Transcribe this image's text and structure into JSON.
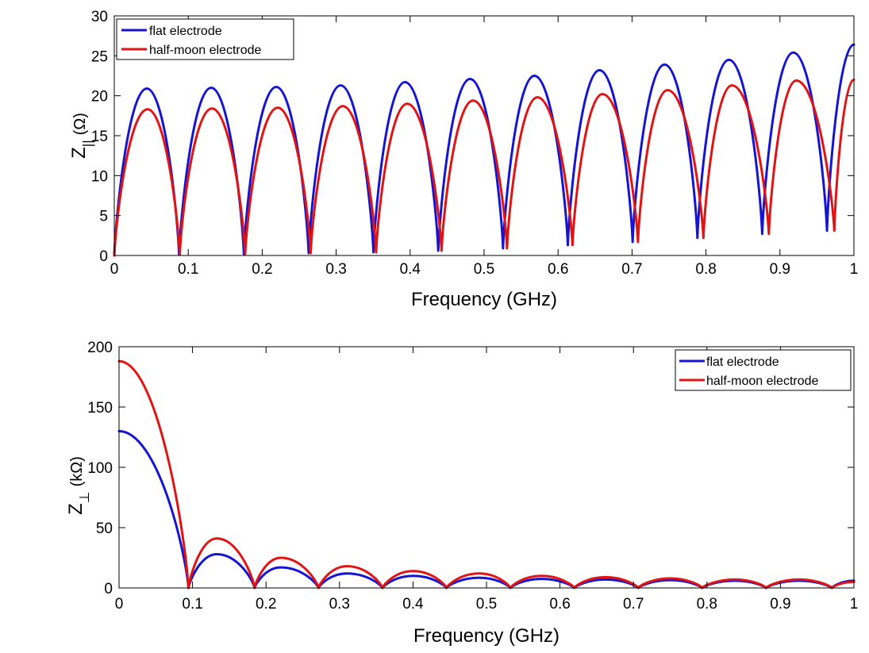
{
  "chart_data": [
    {
      "type": "line",
      "title": "",
      "xlabel": "Frequency (GHz)",
      "ylabel": "Z_|| (Ω)",
      "ylabel_main": "Z",
      "ylabel_sub": "||",
      "ylabel_unit": "(Ω)",
      "xlim": [
        0,
        1
      ],
      "ylim": [
        0,
        30
      ],
      "x_ticks": [
        0,
        0.1,
        0.2,
        0.3,
        0.4,
        0.5,
        0.6,
        0.7,
        0.8,
        0.9,
        1
      ],
      "x_tick_labels": [
        "0",
        "0.1",
        "0.2",
        "0.3",
        "0.4",
        "0.5",
        "0.6",
        "0.7",
        "0.8",
        "0.9",
        "1"
      ],
      "y_ticks": [
        0,
        5,
        10,
        15,
        20,
        25,
        30
      ],
      "y_tick_labels": [
        "0",
        "5",
        "10",
        "15",
        "20",
        "25",
        "30"
      ],
      "legend_position": "top-left",
      "series": [
        {
          "name": "flat electrode",
          "color": "#1414d2",
          "x": [
            0,
            0.044,
            0.0876,
            0.131,
            0.1752,
            0.219,
            0.2628,
            0.306,
            0.3504,
            0.393,
            0.438,
            0.481,
            0.5256,
            0.568,
            0.6132,
            0.656,
            0.7008,
            0.744,
            0.7884,
            0.831,
            0.876,
            0.918,
            0.9636,
            1.0
          ],
          "y": [
            0,
            20.9,
            0.1,
            21.0,
            0.2,
            21.1,
            0.3,
            21.3,
            0.4,
            21.7,
            0.6,
            22.1,
            0.9,
            22.5,
            1.3,
            23.2,
            1.7,
            23.9,
            2.2,
            24.5,
            2.7,
            25.4,
            3.1,
            26.4
          ]
        },
        {
          "name": "half-moon electrode",
          "color": "#e01414",
          "x": [
            0,
            0.045,
            0.0885,
            0.132,
            0.177,
            0.221,
            0.2655,
            0.309,
            0.354,
            0.396,
            0.4425,
            0.485,
            0.531,
            0.572,
            0.6195,
            0.66,
            0.708,
            0.748,
            0.7965,
            0.835,
            0.885,
            0.922,
            0.9735,
            1.0
          ],
          "y": [
            0,
            18.3,
            0.1,
            18.4,
            0.2,
            18.5,
            0.3,
            18.7,
            0.4,
            19.0,
            0.6,
            19.4,
            0.9,
            19.8,
            1.3,
            20.2,
            1.7,
            20.7,
            2.2,
            21.3,
            2.7,
            21.9,
            3.1,
            22.0
          ]
        }
      ]
    },
    {
      "type": "line",
      "title": "",
      "xlabel": "Frequency (GHz)",
      "ylabel": "Z_⊥ (kΩ)",
      "ylabel_main": "Z",
      "ylabel_sub": "⊥",
      "ylabel_unit": "(kΩ)",
      "xlim": [
        0,
        1
      ],
      "ylim": [
        0,
        200
      ],
      "x_ticks": [
        0,
        0.1,
        0.2,
        0.3,
        0.4,
        0.5,
        0.6,
        0.7,
        0.8,
        0.9,
        1
      ],
      "x_tick_labels": [
        "0",
        "0.1",
        "0.2",
        "0.3",
        "0.4",
        "0.5",
        "0.6",
        "0.7",
        "0.8",
        "0.9",
        "1"
      ],
      "y_ticks": [
        0,
        50,
        100,
        150,
        200
      ],
      "y_tick_labels": [
        "0",
        "50",
        "100",
        "150",
        "200"
      ],
      "legend_position": "top-right",
      "series": [
        {
          "name": "flat electrode",
          "color": "#1414d2",
          "x": [
            0,
            0.0945,
            0.133,
            0.1845,
            0.22,
            0.2715,
            0.31,
            0.3585,
            0.4,
            0.4455,
            0.49,
            0.5325,
            0.575,
            0.6195,
            0.662,
            0.7065,
            0.75,
            0.7935,
            0.838,
            0.8805,
            0.925,
            0.97,
            1.0
          ],
          "y": [
            130,
            0,
            28,
            0,
            17,
            0,
            12,
            0,
            10,
            0,
            8.5,
            0,
            7.5,
            0,
            7,
            0,
            6.5,
            0,
            6,
            0,
            6,
            0,
            6
          ]
        },
        {
          "name": "half-moon electrode",
          "color": "#e01414",
          "x": [
            0,
            0.0945,
            0.133,
            0.1845,
            0.22,
            0.2715,
            0.31,
            0.3585,
            0.4,
            0.4455,
            0.49,
            0.5325,
            0.575,
            0.6195,
            0.662,
            0.7065,
            0.75,
            0.7935,
            0.838,
            0.8805,
            0.925,
            0.97,
            1.0
          ],
          "y": [
            188,
            0,
            41,
            0,
            25,
            0,
            18,
            0,
            14,
            0,
            12,
            0,
            10,
            0,
            9,
            0,
            8,
            0,
            7,
            0,
            7,
            0,
            5
          ]
        }
      ]
    }
  ]
}
